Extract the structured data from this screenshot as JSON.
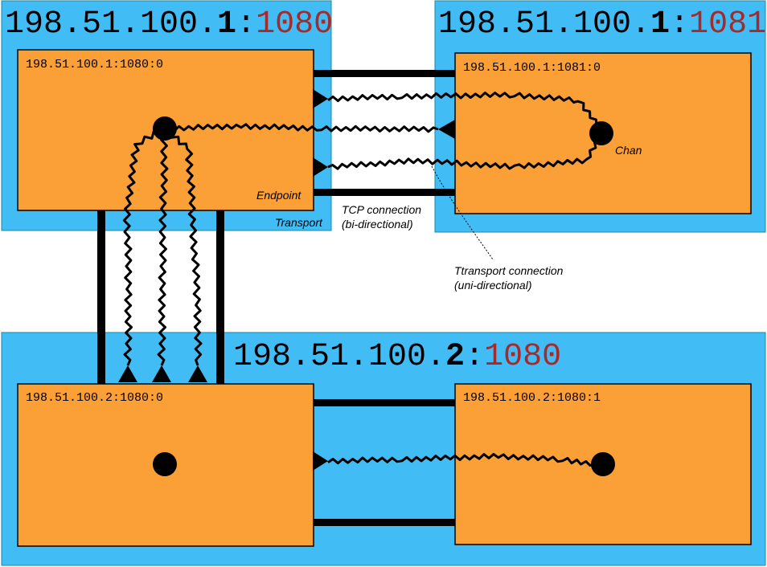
{
  "hosts": {
    "top_left": {
      "ip": "198.51.100.",
      "last": "1",
      "sep": ":",
      "port": "1080"
    },
    "top_right": {
      "ip": "198.51.100.",
      "last": "1",
      "sep": ":",
      "port": "1081"
    },
    "bottom": {
      "ip": "198.51.100.",
      "last": "2",
      "sep": ":",
      "port": "1080"
    }
  },
  "endpoints": {
    "tl": "198.51.100.1:1080:0",
    "tr": "198.51.100.1:1081:0",
    "bl": "198.51.100.2:1080:0",
    "br": "198.51.100.2:1080:1"
  },
  "notes": {
    "endpoint": "Endpoint",
    "transport": "Transport",
    "chan": "Chan",
    "tcp_line1": "TCP connection",
    "tcp_line2": "(bi-directional)",
    "ttransport_line1": "Ttransport connection",
    "ttransport_line2": "(uni-directional)"
  },
  "colors": {
    "transport": "#41bcf5",
    "endpoint": "#fb9f37",
    "port": "#a52a2a",
    "line": "#000000"
  }
}
